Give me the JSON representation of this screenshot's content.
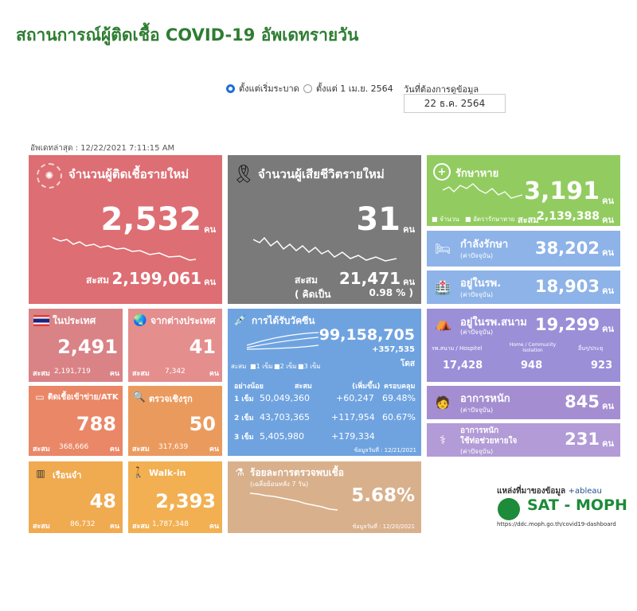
{
  "title": "สถานการณ์ผู้ติดเชื้อ COVID-19 อัพเดทรายวัน",
  "filters": {
    "option_since_start": "ตั้งแต่เริ่มระบาด",
    "option_since_date": "ตั้งแต่ 1 เม.ย. 2564",
    "date_label": "วันที่ต้องการดูข้อมูล",
    "date_value": "22 ธ.ค. 2564"
  },
  "updated": "อัพเดทล่าสุด : 12/22/2021 7:11:15 AM",
  "unit": "คน",
  "total_label": "สะสม",
  "new_cases": {
    "label": "จำนวนผู้ติดเชื้อรายใหม่",
    "value": "2,532",
    "total": "2,199,061"
  },
  "deaths": {
    "label": "จำนวนผู้เสียชีวิตรายใหม่",
    "value": "31",
    "total": "21,471",
    "pct_label": "( คิดเป็น",
    "pct": "0.98 % )"
  },
  "recovered": {
    "label": "รักษาหาย",
    "value": "3,191",
    "total": "2,139,388",
    "legend_daily": "จำนวน",
    "legend_rate": "อัตรารักษาหาย"
  },
  "treating": {
    "label": "กำลังรักษา",
    "sub": "(ค่าปัจจุบัน)",
    "value": "38,202"
  },
  "hospital": {
    "label": "อยู่ในรพ.",
    "sub": "(ค่าปัจจุบัน)",
    "value": "18,903"
  },
  "field_hospital": {
    "label": "อยู่ในรพ.สนาม",
    "sub": "(ค่าปัจจุบัน)",
    "value": "19,299",
    "col1_label": "รพ.สนาม / Hospitel",
    "col1_value": "17,428",
    "col2_label": "Home / Community Isolation",
    "col2_value": "948",
    "col3_label": "อื่นๆ/ประยุ",
    "col3_value": "923"
  },
  "severe": {
    "label": "อาการหนัก",
    "sub": "(ค่าปัจจุบัน)",
    "value": "845"
  },
  "ventilator": {
    "label": "อาการหนัก",
    "label2": "ใช้ท่อช่วยหายใจ",
    "sub": "(ค่าปัจจุบัน)",
    "value": "231"
  },
  "domestic": {
    "label": "ในประเทศ",
    "value": "2,491",
    "total": "2,191,719"
  },
  "imported": {
    "label": "จากต่างประเทศ",
    "value": "41",
    "total": "7,342"
  },
  "prison": {
    "label": "ติดเชื้อเข้าข่าย/ATK",
    "value": "788",
    "total": "368,666"
  },
  "active_search": {
    "label": "ตรวจเชิงรุก",
    "value": "50",
    "total": "317,639"
  },
  "jail": {
    "label": "เรือนจำ",
    "value": "48",
    "total": "86,732"
  },
  "walkin": {
    "label": "Walk-in",
    "value": "2,393",
    "total": "1,787,348"
  },
  "vaccine": {
    "label": "การได้รับวัคซีน",
    "total": "99,158,705",
    "increase": "+357,535",
    "unit": "โดส",
    "legend": [
      "1 เข็ม",
      "2 เข็ม",
      "3 เข็ม"
    ],
    "legend_prefix": "สะสม",
    "headers": [
      "อย่างน้อย",
      "สะสม",
      "(เพิ่มขึ้น)",
      "ครอบคลุม"
    ],
    "rows": [
      {
        "dose": "1 เข็ม",
        "total": "50,049,360",
        "inc": "+60,247",
        "cov": "69.48%"
      },
      {
        "dose": "2 เข็ม",
        "total": "43,703,365",
        "inc": "+117,954",
        "cov": "60.67%"
      },
      {
        "dose": "3 เข็ม",
        "total": "5,405,980",
        "inc": "+179,334",
        "cov": ""
      }
    ],
    "as_of": "ข้อมูลวันที่ : 12/21/2021"
  },
  "positivity": {
    "label": "ร้อยละการตรวจพบเชื้อ",
    "sub": "(เฉลี่ยย้อนหลัง 7 วัน)",
    "value": "5.68%",
    "as_of": "ข้อมูลวันที่ : 12/20/2021"
  },
  "source": {
    "label": "แหล่งที่มาของข้อมูล",
    "tableau": "+ableau",
    "org": "SAT - MOPH",
    "url": "https://ddc.moph.go.th/covid19-dashboard"
  },
  "colors": {
    "red": "#dd6e73",
    "grey": "#7a7a7a",
    "green": "#92cc60",
    "blue": "#8db3e8",
    "title_green": "#2e7d32"
  }
}
